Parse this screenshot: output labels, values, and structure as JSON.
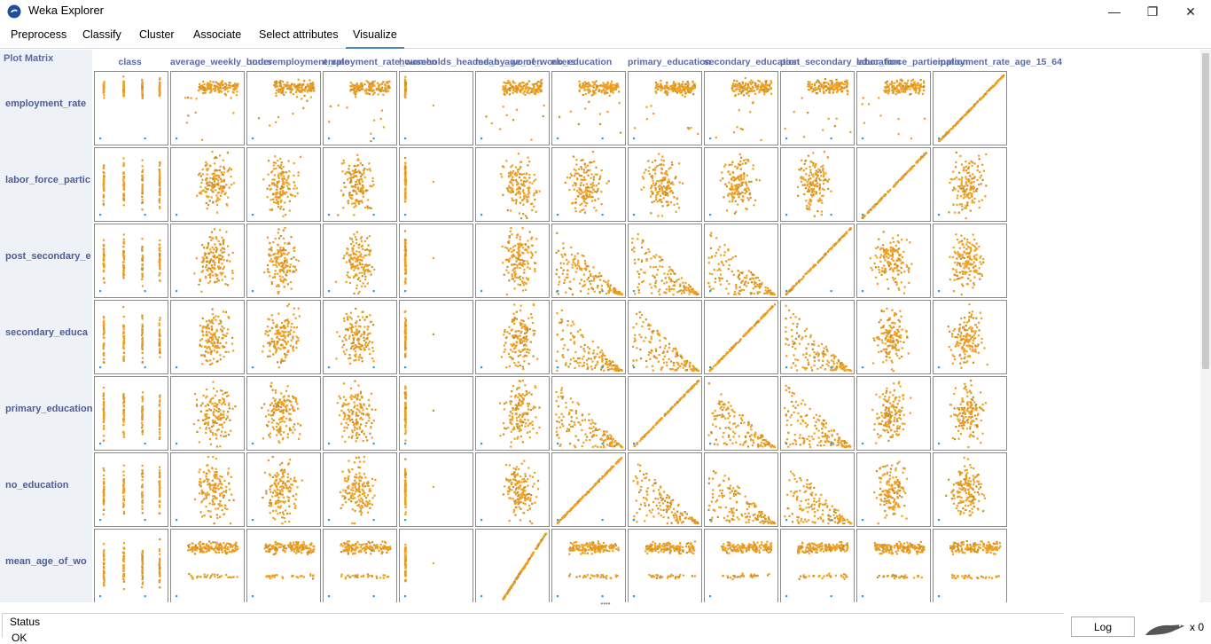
{
  "window": {
    "title": "Weka Explorer",
    "icon": "weka-bird-icon",
    "controls": {
      "minimize": "—",
      "restore": "❐",
      "close": "✕"
    }
  },
  "tabs": [
    {
      "label": "Preprocess",
      "active": false
    },
    {
      "label": "Classify",
      "active": false
    },
    {
      "label": "Cluster",
      "active": false
    },
    {
      "label": "Associate",
      "active": false
    },
    {
      "label": "Select attributes",
      "active": false
    },
    {
      "label": "Visualize",
      "active": true
    }
  ],
  "matrix": {
    "title": "Plot Matrix",
    "column_headers": [
      "class",
      "average_weekly_hours",
      "underemployment_rate",
      "employment_rate_women",
      "households_headed_by_women",
      "mean_age_of_workers",
      "no_education",
      "primary_education",
      "secondary_education",
      "post_secondary_education",
      "labor_force_participation",
      "employment_rate_age_15_64"
    ],
    "row_labels": [
      "employment_rate",
      "labor_force_partic",
      "post_secondary_e",
      "secondary_educa",
      "primary_education",
      "no_education",
      "mean_age_of_wo"
    ],
    "point_color": "#f0a020",
    "alt_point_color": "#2a9fd8",
    "border_color": "#8a8a8a"
  },
  "status": {
    "title": "Status",
    "text": "OK",
    "log_button": "Log",
    "task_count": "x 0"
  }
}
